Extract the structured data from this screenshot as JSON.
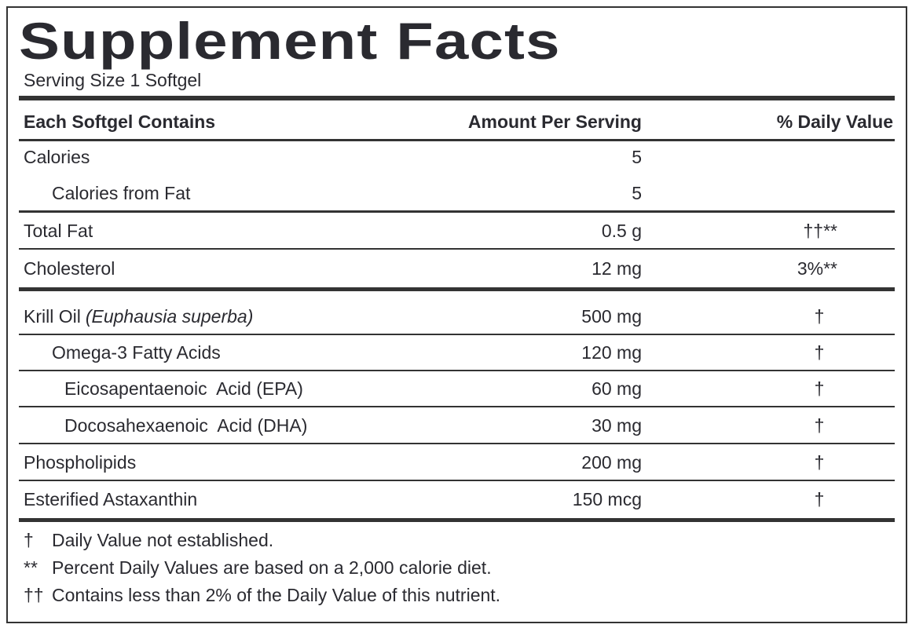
{
  "header": {
    "title": "Supplement Facts",
    "serving": "Serving Size 1 Softgel"
  },
  "table": {
    "columns": [
      "Each Softgel Contains",
      "Amount Per Serving",
      "% Daily Value"
    ],
    "rows": [
      {
        "name": "Calories",
        "amount": "5"
      },
      {
        "name": "Calories from Fat",
        "amount": "5"
      },
      {
        "name": "Total Fat",
        "amount": "0.5 g",
        "dv": "††**"
      },
      {
        "name": "Cholesterol",
        "amount": "12 mg",
        "dv": "3%**"
      },
      {
        "name": "Krill Oil",
        "italic": "(Euphausia superba)",
        "amount": "500 mg",
        "dv": "†"
      },
      {
        "name": "Omega-3 Fatty Acids",
        "amount": "120 mg",
        "dv": "†"
      },
      {
        "name": "Eicosapentaenoic  Acid (EPA)",
        "amount": "60 mg",
        "dv": "†"
      },
      {
        "name": "Docosahexaenoic  Acid (DHA)",
        "amount": "30 mg",
        "dv": "†"
      },
      {
        "name": "Phospholipids",
        "amount": "200 mg",
        "dv": "†"
      },
      {
        "name": "Esterified Astaxanthin",
        "amount": "150 mcg",
        "dv": "†"
      }
    ]
  },
  "footnotes": [
    {
      "symbol": "†",
      "text": "Daily Value not established."
    },
    {
      "symbol": "**",
      "text": "Percent Daily Values are based on a 2,000 calorie diet."
    },
    {
      "symbol": "††",
      "text": "Contains less than 2% of the Daily Value of this nutrient."
    }
  ]
}
